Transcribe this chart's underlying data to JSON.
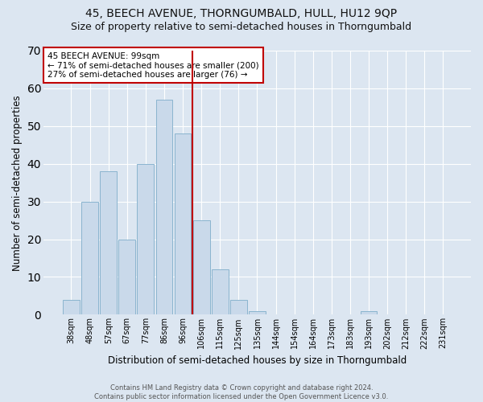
{
  "title": "45, BEECH AVENUE, THORNGUMBALD, HULL, HU12 9QP",
  "subtitle": "Size of property relative to semi-detached houses in Thorngumbald",
  "xlabel": "Distribution of semi-detached houses by size in Thorngumbald",
  "ylabel": "Number of semi-detached properties",
  "footer": "Contains HM Land Registry data © Crown copyright and database right 2024.\nContains public sector information licensed under the Open Government Licence v3.0.",
  "categories": [
    "38sqm",
    "48sqm",
    "57sqm",
    "67sqm",
    "77sqm",
    "86sqm",
    "96sqm",
    "106sqm",
    "115sqm",
    "125sqm",
    "135sqm",
    "144sqm",
    "154sqm",
    "164sqm",
    "173sqm",
    "183sqm",
    "193sqm",
    "202sqm",
    "212sqm",
    "222sqm",
    "231sqm"
  ],
  "values": [
    4,
    30,
    38,
    20,
    40,
    57,
    48,
    25,
    12,
    4,
    1,
    0,
    0,
    0,
    0,
    0,
    1,
    0,
    0,
    0,
    0
  ],
  "bar_color": "#c9d9ea",
  "bar_edge_color": "#8ab4cf",
  "highlight_bar_index": 6,
  "highlight_color": "#c00000",
  "annotation_title": "45 BEECH AVENUE: 99sqm",
  "annotation_line1": "← 71% of semi-detached houses are smaller (200)",
  "annotation_line2": "27% of semi-detached houses are larger (76) →",
  "ylim": [
    0,
    70
  ],
  "yticks": [
    0,
    10,
    20,
    30,
    40,
    50,
    60,
    70
  ],
  "background_color": "#dce6f1",
  "plot_bg_color": "#dce6f1",
  "grid_color": "#ffffff",
  "title_fontsize": 10,
  "subtitle_fontsize": 9,
  "xlabel_fontsize": 8.5,
  "ylabel_fontsize": 8.5,
  "tick_fontsize": 7,
  "annotation_fontsize": 7.5,
  "footer_fontsize": 6
}
